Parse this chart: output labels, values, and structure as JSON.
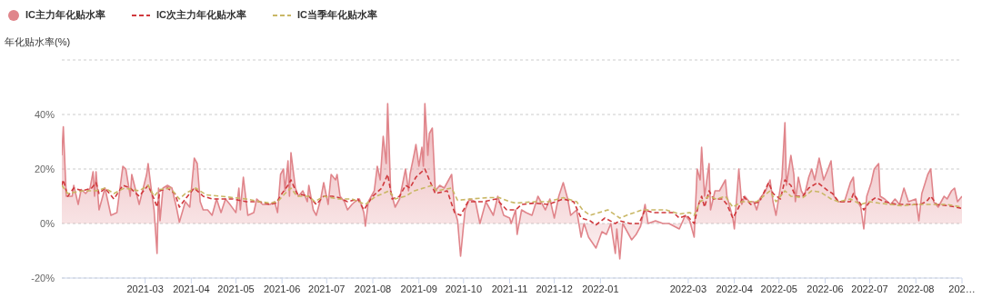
{
  "chart_data": {
    "type": "line",
    "ylabel": "年化贴水率(%)",
    "legend": "top left",
    "grid": "y",
    "xlim": [
      "2021-01-04",
      "2022-09-01"
    ],
    "xticks": [
      "2021-03",
      "2021-04",
      "2021-05",
      "2021-06",
      "2021-07",
      "2021-08",
      "2021-09",
      "2021-10",
      "2021-11",
      "2021-12",
      "2022-01",
      "2022-03",
      "2022-04",
      "2022-05",
      "2022-06",
      "2022-07",
      "2022-08",
      {
        "value": "2022-09",
        "label": "202…"
      }
    ],
    "ylim": [
      -20,
      60
    ],
    "yticks": [
      {
        "value": -20,
        "label": "-20%"
      },
      {
        "value": 0,
        "label": "0%"
      },
      {
        "value": 20,
        "label": "20%"
      },
      {
        "value": 40,
        "label": "40%"
      },
      {
        "value": 60,
        "label": null
      }
    ],
    "series": [
      {
        "name": "IC主力年化贴水率",
        "type": "area",
        "color": "#e0858b",
        "line_style": "solid",
        "x": [
          "2021-01-04",
          "2021-01-05",
          "2021-01-07",
          "2021-01-11",
          "2021-01-12",
          "2021-01-15",
          "2021-01-17",
          "2021-01-20",
          "2021-01-23",
          "2021-01-25",
          "2021-01-26",
          "2021-01-27",
          "2021-01-29",
          "2021-02-02",
          "2021-02-06",
          "2021-02-10",
          "2021-02-14",
          "2021-02-16",
          "2021-02-19",
          "2021-02-20",
          "2021-02-25",
          "2021-03-02",
          "2021-03-03",
          "2021-03-05",
          "2021-03-07",
          "2021-03-09",
          "2021-03-10",
          "2021-03-11",
          "2021-03-13",
          "2021-03-16",
          "2021-03-19",
          "2021-03-22",
          "2021-03-24",
          "2021-03-28",
          "2021-03-31",
          "2021-04-03",
          "2021-04-05",
          "2021-04-07",
          "2021-04-09",
          "2021-04-12",
          "2021-04-15",
          "2021-04-18",
          "2021-04-21",
          "2021-04-24",
          "2021-04-27",
          "2021-05-01",
          "2021-05-03",
          "2021-05-04",
          "2021-05-06",
          "2021-05-09",
          "2021-05-13",
          "2021-05-15",
          "2021-05-19",
          "2021-05-24",
          "2021-05-27",
          "2021-05-29",
          "2021-05-31",
          "2021-06-02",
          "2021-06-03",
          "2021-06-05",
          "2021-06-06",
          "2021-06-07",
          "2021-06-10",
          "2021-06-12",
          "2021-06-15",
          "2021-06-18",
          "2021-06-19",
          "2021-06-22",
          "2021-06-24",
          "2021-06-27",
          "2021-06-29",
          "2021-07-02",
          "2021-07-04",
          "2021-07-07",
          "2021-07-08",
          "2021-07-10",
          "2021-07-13",
          "2021-07-15",
          "2021-07-18",
          "2021-07-20",
          "2021-07-23",
          "2021-07-26",
          "2021-07-27",
          "2021-07-29",
          "2021-08-02",
          "2021-08-04",
          "2021-08-06",
          "2021-08-08",
          "2021-08-10",
          "2021-08-11",
          "2021-08-13",
          "2021-08-16",
          "2021-08-18",
          "2021-08-19",
          "2021-08-23",
          "2021-08-25",
          "2021-08-26",
          "2021-08-29",
          "2021-08-30",
          "2021-09-01",
          "2021-09-03",
          "2021-09-04",
          "2021-09-05",
          "2021-09-07",
          "2021-09-08",
          "2021-09-10",
          "2021-09-12",
          "2021-09-15",
          "2021-09-18",
          "2021-09-23",
          "2021-09-25",
          "2021-09-27",
          "2021-09-29",
          "2021-10-02",
          "2021-10-05",
          "2021-10-09",
          "2021-10-12",
          "2021-10-16",
          "2021-10-21",
          "2021-10-24",
          "2021-10-28",
          "2021-11-01",
          "2021-11-02",
          "2021-11-05",
          "2021-11-06",
          "2021-11-09",
          "2021-11-12",
          "2021-11-16",
          "2021-11-20",
          "2021-11-21",
          "2021-11-25",
          "2021-11-28",
          "2021-12-01",
          "2021-12-04",
          "2021-12-07",
          "2021-12-10",
          "2021-12-12",
          "2021-12-16",
          "2021-12-19",
          "2021-12-21",
          "2021-12-24",
          "2021-12-29",
          "2022-01-02",
          "2022-01-05",
          "2022-01-08",
          "2022-01-11",
          "2022-01-12",
          "2022-01-14",
          "2022-01-16",
          "2022-01-19",
          "2022-01-22",
          "2022-01-25",
          "2022-01-28",
          "2022-01-31",
          "2022-02-02",
          "2022-02-07",
          "2022-02-12",
          "2022-02-16",
          "2022-02-23",
          "2022-02-27",
          "2022-03-02",
          "2022-03-05",
          "2022-03-07",
          "2022-03-09",
          "2022-03-10",
          "2022-03-12",
          "2022-03-15",
          "2022-03-16",
          "2022-03-19",
          "2022-03-22",
          "2022-03-26",
          "2022-03-27",
          "2022-03-31",
          "2022-04-01",
          "2022-04-04",
          "2022-04-06",
          "2022-04-08",
          "2022-04-11",
          "2022-04-14",
          "2022-04-16",
          "2022-04-18",
          "2022-04-22",
          "2022-04-25",
          "2022-04-27",
          "2022-04-29",
          "2022-05-03",
          "2022-05-05",
          "2022-05-06",
          "2022-05-09",
          "2022-05-11",
          "2022-05-12",
          "2022-05-14",
          "2022-05-16",
          "2022-05-18",
          "2022-05-21",
          "2022-05-23",
          "2022-05-25",
          "2022-05-28",
          "2022-05-31",
          "2022-06-03",
          "2022-06-05",
          "2022-06-07",
          "2022-06-10",
          "2022-06-14",
          "2022-06-18",
          "2022-06-20",
          "2022-06-21",
          "2022-06-25",
          "2022-06-27",
          "2022-06-29",
          "2022-07-02",
          "2022-07-04",
          "2022-07-07",
          "2022-07-08",
          "2022-07-11",
          "2022-07-15",
          "2022-07-18",
          "2022-07-21",
          "2022-07-24",
          "2022-07-27",
          "2022-08-01",
          "2022-08-03",
          "2022-08-05",
          "2022-08-09",
          "2022-08-11",
          "2022-08-13",
          "2022-08-16",
          "2022-08-20",
          "2022-08-22",
          "2022-08-25",
          "2022-08-27",
          "2022-08-29",
          "2022-09-01"
        ],
        "values": [
          25,
          35.5,
          10,
          10,
          14,
          7,
          12.5,
          11,
          13,
          19,
          10,
          19,
          5,
          13,
          3,
          4,
          21,
          20,
          10,
          18,
          7,
          18,
          22,
          13,
          5,
          -11,
          13,
          1,
          13,
          14,
          13,
          6,
          0.5,
          8,
          6,
          24,
          22,
          8,
          5,
          5,
          3,
          9,
          4,
          9,
          7,
          4,
          13,
          5,
          17,
          3,
          4,
          9,
          7,
          7,
          8,
          4,
          18,
          20,
          12,
          23,
          10,
          26,
          13,
          10,
          12,
          8,
          14,
          5,
          3,
          9,
          15,
          7,
          18,
          16,
          18,
          10,
          8,
          5,
          7,
          8,
          9,
          4,
          -1,
          8,
          12,
          21,
          16,
          32,
          22,
          44,
          12,
          6,
          8,
          9,
          20,
          12,
          18,
          26,
          29,
          21,
          28,
          21,
          44,
          25,
          33,
          35,
          12,
          14,
          13,
          18,
          5,
          1,
          -12,
          5,
          9,
          8,
          0,
          8,
          3,
          10,
          3,
          2,
          0,
          5,
          -4,
          5,
          4,
          3,
          10,
          9,
          5,
          9,
          2,
          10,
          15,
          9,
          3,
          5,
          -5,
          0,
          -5,
          -9,
          -3,
          -4,
          0,
          -11,
          -2,
          -13,
          0,
          -3,
          -6,
          -4,
          -1,
          7,
          0,
          1,
          0,
          0,
          -2,
          3,
          1,
          -5,
          20,
          16,
          28,
          10,
          22,
          5,
          12,
          12,
          16,
          10,
          2,
          -2,
          20,
          7,
          10,
          8,
          8,
          5,
          9,
          12,
          16,
          8,
          3,
          17,
          37,
          14,
          25,
          18,
          8,
          17,
          12,
          10,
          17,
          20,
          16,
          24,
          16,
          20,
          23,
          10,
          8,
          8,
          15,
          17,
          10,
          6,
          -2,
          10,
          15,
          20,
          22,
          10,
          9,
          7,
          9,
          7,
          13,
          8,
          9,
          1,
          11,
          18,
          20,
          8,
          6,
          10,
          9,
          12,
          13,
          8,
          10
        ]
      },
      {
        "name": "IC次主力年化贴水率",
        "color": "#d0393d",
        "line_style": "dashed",
        "x": [
          "2021-01-04",
          "2021-01-05",
          "2021-01-08",
          "2021-01-12",
          "2021-01-18",
          "2021-01-24",
          "2021-01-27",
          "2021-01-29",
          "2021-02-02",
          "2021-02-08",
          "2021-02-14",
          "2021-02-19",
          "2021-02-25",
          "2021-03-03",
          "2021-03-07",
          "2021-03-09",
          "2021-03-11",
          "2021-03-16",
          "2021-03-21",
          "2021-03-24",
          "2021-03-28",
          "2021-04-03",
          "2021-04-09",
          "2021-04-15",
          "2021-04-21",
          "2021-04-29",
          "2021-05-08",
          "2021-05-17",
          "2021-05-24",
          "2021-05-28",
          "2021-06-01",
          "2021-06-05",
          "2021-06-07",
          "2021-06-11",
          "2021-06-19",
          "2021-06-24",
          "2021-06-29",
          "2021-07-05",
          "2021-07-09",
          "2021-07-15",
          "2021-07-22",
          "2021-07-26",
          "2021-08-01",
          "2021-08-07",
          "2021-08-11",
          "2021-08-14",
          "2021-08-19",
          "2021-08-23",
          "2021-08-26",
          "2021-08-30",
          "2021-09-05",
          "2021-09-08",
          "2021-09-12",
          "2021-09-20",
          "2021-09-25",
          "2021-09-29",
          "2021-10-04",
          "2021-10-14",
          "2021-10-23",
          "2021-10-30",
          "2021-11-05",
          "2021-11-09",
          "2021-11-18",
          "2021-11-27",
          "2021-12-07",
          "2021-12-14",
          "2021-12-19",
          "2021-12-25",
          "2021-12-29",
          "2022-01-04",
          "2022-01-11",
          "2022-01-14",
          "2022-01-21",
          "2022-01-27",
          "2022-01-31",
          "2022-02-05",
          "2022-02-12",
          "2022-02-19",
          "2022-02-23",
          "2022-02-28",
          "2022-03-05",
          "2022-03-08",
          "2022-03-10",
          "2022-03-12",
          "2022-03-15",
          "2022-03-18",
          "2022-03-24",
          "2022-03-27",
          "2022-03-31",
          "2022-04-04",
          "2022-04-07",
          "2022-04-12",
          "2022-04-18",
          "2022-04-24",
          "2022-04-27",
          "2022-05-02",
          "2022-05-05",
          "2022-05-09",
          "2022-05-12",
          "2022-05-17",
          "2022-05-21",
          "2022-05-27",
          "2022-06-03",
          "2022-06-06",
          "2022-06-10",
          "2022-06-18",
          "2022-06-20",
          "2022-06-25",
          "2022-06-27",
          "2022-07-01",
          "2022-07-05",
          "2022-07-11",
          "2022-07-19",
          "2022-07-27",
          "2022-08-04",
          "2022-08-08",
          "2022-08-11",
          "2022-08-15",
          "2022-08-23",
          "2022-08-28",
          "2022-09-01"
        ],
        "values": [
          14,
          16,
          10,
          13,
          12,
          13,
          15,
          11,
          13,
          9,
          14,
          13,
          10,
          14,
          9,
          6,
          12,
          13,
          11,
          6,
          9,
          13,
          10,
          9,
          9,
          9,
          8,
          8,
          7,
          7.5,
          11,
          14,
          16,
          11,
          10,
          7,
          10,
          10,
          9.5,
          8,
          9,
          5,
          10,
          13,
          18,
          9,
          10,
          14,
          13,
          17,
          20,
          16,
          11,
          12,
          4,
          3,
          8,
          8,
          9,
          5,
          5,
          7,
          7.5,
          7,
          9,
          8,
          2,
          1,
          -0.5,
          2,
          0,
          1,
          0,
          0,
          5,
          4,
          4,
          4,
          2,
          3,
          0,
          7,
          10,
          6,
          12,
          9,
          9,
          7,
          2,
          6,
          10,
          7,
          8,
          15,
          11,
          9,
          16,
          14,
          10,
          10,
          13,
          15,
          12,
          11,
          8,
          8,
          11,
          7,
          5,
          8,
          9.5,
          8,
          7,
          7,
          7,
          8,
          10,
          7,
          6.5,
          6,
          5.5
        ]
      },
      {
        "name": "IC当季年化贴水率",
        "color": "#c9b765",
        "line_style": "dashed",
        "x": [
          "2021-01-04",
          "2021-01-08",
          "2021-01-18",
          "2021-01-27",
          "2021-02-02",
          "2021-02-08",
          "2021-02-15",
          "2021-02-25",
          "2021-03-03",
          "2021-03-07",
          "2021-03-11",
          "2021-03-18",
          "2021-03-24",
          "2021-03-28",
          "2021-04-04",
          "2021-04-11",
          "2021-04-21",
          "2021-04-29",
          "2021-05-08",
          "2021-05-17",
          "2021-05-24",
          "2021-05-29",
          "2021-06-03",
          "2021-06-07",
          "2021-06-11",
          "2021-06-19",
          "2021-06-23",
          "2021-06-29",
          "2021-07-09",
          "2021-07-18",
          "2021-07-27",
          "2021-08-03",
          "2021-08-08",
          "2021-08-12",
          "2021-08-16",
          "2021-08-23",
          "2021-08-29",
          "2021-09-04",
          "2021-09-10",
          "2021-09-13",
          "2021-09-23",
          "2021-09-27",
          "2021-10-06",
          "2021-10-18",
          "2021-10-25",
          "2021-11-01",
          "2021-11-05",
          "2021-11-18",
          "2021-11-27",
          "2021-12-07",
          "2021-12-16",
          "2021-12-20",
          "2021-12-25",
          "2021-12-31",
          "2022-01-06",
          "2022-01-14",
          "2022-01-21",
          "2022-01-29",
          "2022-02-05",
          "2022-02-14",
          "2022-02-23",
          "2022-03-02",
          "2022-03-05",
          "2022-03-09",
          "2022-03-15",
          "2022-03-20",
          "2022-03-26",
          "2022-03-29",
          "2022-03-31",
          "2022-04-06",
          "2022-04-16",
          "2022-04-25",
          "2022-04-29",
          "2022-05-05",
          "2022-05-09",
          "2022-05-17",
          "2022-05-23",
          "2022-05-29",
          "2022-06-05",
          "2022-06-10",
          "2022-06-18",
          "2022-06-25",
          "2022-07-01",
          "2022-07-07",
          "2022-07-15",
          "2022-07-23",
          "2022-08-01",
          "2022-08-08",
          "2022-08-15",
          "2022-08-22",
          "2022-09-01"
        ],
        "values": [
          14,
          11,
          12,
          12,
          13,
          11,
          13,
          12,
          14,
          10,
          12.5,
          13,
          9,
          11,
          13,
          10.5,
          10,
          9.5,
          9,
          8,
          7.5,
          8,
          11,
          13,
          10,
          10,
          8,
          10,
          9,
          9,
          7,
          10,
          11,
          12,
          9,
          10,
          12,
          13,
          14,
          12,
          13,
          8.5,
          9,
          9.5,
          9.5,
          8,
          7.5,
          8,
          8,
          9.5,
          8,
          5,
          3,
          4,
          5,
          2,
          3.5,
          5,
          5,
          5,
          3.5,
          4,
          3,
          8,
          10,
          9,
          10,
          7.5,
          6,
          8,
          8,
          12,
          8,
          12,
          10,
          9.5,
          12,
          11.5,
          9,
          8,
          9,
          7,
          8,
          7.5,
          7,
          6.5,
          7,
          7,
          7,
          7,
          6
        ]
      }
    ]
  }
}
